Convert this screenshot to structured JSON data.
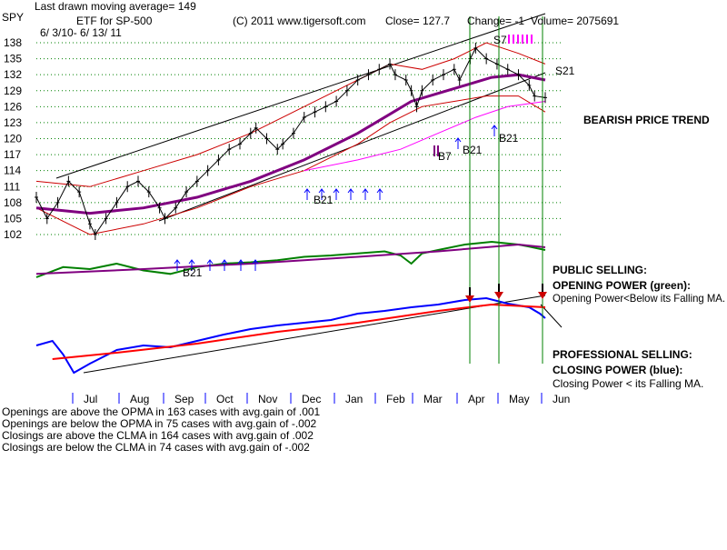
{
  "header": {
    "symbol": "SPY",
    "ma_line": "Last drawn moving average= 149",
    "etf_label": "ETF for SP-500",
    "date_range": "6/ 3/10- 6/ 13/ 11",
    "copyright": "(C) 2011 www.tigersoft.com",
    "close": "Close= 127.7",
    "change": "Change= -1",
    "volume": "Volume= 2075691"
  },
  "annotations": {
    "bearish": "BEARISH PRICE TREND",
    "public_selling": "PUBLIC SELLING:",
    "opening_power": "OPENING POWER (green):",
    "opening_power_desc": "Opening Power<Below its Falling MA.",
    "professional_selling": "PROFESSIONAL SELLING:",
    "closing_power": "CLOSING POWER (blue):",
    "closing_power_desc": "Closing Power < its Falling MA."
  },
  "signals": {
    "b21_a": "B21",
    "b21_b": "B21",
    "b21_c": "B21",
    "b21_d": "B21",
    "b7": "B7",
    "s7": "S7",
    "s21": "S21"
  },
  "stats": [
    "Openings are above the OPMA in  163 cases with avg.gain of  .001",
    "Openings are below the OPMA in  75 cases with avg.gain of -.002",
    "Closings are above the CLMA in  164 cases with avg.gain of  .002",
    "Closings are below the CLMA in  74 cases with avg.gain of -.002"
  ],
  "colors": {
    "price": "#000000",
    "bands": "#cc0000",
    "ma": "#800080",
    "ma_short": "#ff00ff",
    "opening_power": "#008000",
    "closing_power": "#0000ff",
    "closing_ma": "#ff0000",
    "signal": "#0000ff",
    "vline": "#008000",
    "grid": "#008000"
  },
  "chart_data": {
    "type": "line",
    "title": "",
    "xlabel": "",
    "ylabel": "",
    "ylim": [
      102,
      138
    ],
    "y_ticks": [
      138,
      135,
      132,
      129,
      126,
      123,
      120,
      117,
      114,
      111,
      108,
      105,
      102
    ],
    "months": [
      "Jul",
      "Aug",
      "Sep",
      "Oct",
      "Nov",
      "Dec",
      "Jan",
      "Feb",
      "Mar",
      "Apr",
      "May",
      "Jun"
    ],
    "grid": true,
    "price_path": [
      [
        0,
        109
      ],
      [
        2,
        105
      ],
      [
        4,
        108
      ],
      [
        6,
        112
      ],
      [
        8,
        110
      ],
      [
        10,
        104
      ],
      [
        11,
        102
      ],
      [
        13,
        105
      ],
      [
        15,
        108
      ],
      [
        17,
        111
      ],
      [
        19,
        112
      ],
      [
        21,
        110
      ],
      [
        23,
        107
      ],
      [
        24,
        105
      ],
      [
        26,
        107
      ],
      [
        28,
        110
      ],
      [
        30,
        112
      ],
      [
        32,
        114
      ],
      [
        34,
        116
      ],
      [
        36,
        118
      ],
      [
        38,
        119
      ],
      [
        40,
        121
      ],
      [
        41,
        122
      ],
      [
        43,
        120
      ],
      [
        45,
        118
      ],
      [
        46,
        119
      ],
      [
        48,
        121
      ],
      [
        50,
        124
      ],
      [
        52,
        125
      ],
      [
        54,
        126
      ],
      [
        56,
        127
      ],
      [
        58,
        129
      ],
      [
        60,
        131
      ],
      [
        62,
        132
      ],
      [
        64,
        133
      ],
      [
        66,
        134
      ],
      [
        67,
        132
      ],
      [
        69,
        131
      ],
      [
        70,
        129
      ],
      [
        71,
        126
      ],
      [
        72,
        129
      ],
      [
        74,
        131
      ],
      [
        76,
        132
      ],
      [
        78,
        133
      ],
      [
        79,
        131
      ],
      [
        81,
        135
      ],
      [
        82,
        137
      ],
      [
        84,
        135
      ],
      [
        86,
        134
      ],
      [
        88,
        133
      ],
      [
        90,
        132
      ],
      [
        92,
        130
      ],
      [
        93,
        128
      ],
      [
        95,
        127.7
      ]
    ],
    "ma_path": [
      [
        0,
        107
      ],
      [
        10,
        106
      ],
      [
        20,
        107
      ],
      [
        30,
        109
      ],
      [
        40,
        112
      ],
      [
        50,
        116
      ],
      [
        60,
        121
      ],
      [
        65,
        124
      ],
      [
        70,
        127
      ],
      [
        75,
        128.5
      ],
      [
        80,
        130
      ],
      [
        85,
        131.5
      ],
      [
        90,
        132
      ],
      [
        95,
        131
      ]
    ],
    "ma_short_path": [
      [
        50,
        114
      ],
      [
        60,
        116
      ],
      [
        68,
        118
      ],
      [
        75,
        121
      ],
      [
        82,
        124
      ],
      [
        88,
        126
      ],
      [
        95,
        127
      ]
    ],
    "upper_band": [
      [
        0,
        112
      ],
      [
        10,
        111
      ],
      [
        20,
        114
      ],
      [
        30,
        117
      ],
      [
        40,
        121
      ],
      [
        50,
        126
      ],
      [
        60,
        131
      ],
      [
        66,
        134
      ],
      [
        72,
        133
      ],
      [
        78,
        135
      ],
      [
        84,
        138
      ],
      [
        90,
        136
      ],
      [
        95,
        134
      ]
    ],
    "lower_band": [
      [
        0,
        107
      ],
      [
        10,
        102
      ],
      [
        20,
        104
      ],
      [
        30,
        107
      ],
      [
        40,
        111
      ],
      [
        50,
        114
      ],
      [
        60,
        119
      ],
      [
        66,
        123
      ],
      [
        72,
        126
      ],
      [
        78,
        127
      ],
      [
        84,
        128
      ],
      [
        90,
        128
      ],
      [
        95,
        125
      ]
    ],
    "opening_power_path": [
      [
        0,
        40
      ],
      [
        5,
        55
      ],
      [
        10,
        52
      ],
      [
        15,
        60
      ],
      [
        20,
        50
      ],
      [
        25,
        45
      ],
      [
        30,
        55
      ],
      [
        35,
        60
      ],
      [
        40,
        62
      ],
      [
        45,
        65
      ],
      [
        50,
        70
      ],
      [
        55,
        72
      ],
      [
        60,
        75
      ],
      [
        65,
        78
      ],
      [
        68,
        72
      ],
      [
        70,
        60
      ],
      [
        72,
        75
      ],
      [
        75,
        80
      ],
      [
        80,
        88
      ],
      [
        85,
        92
      ],
      [
        90,
        88
      ],
      [
        92,
        85
      ],
      [
        95,
        80
      ]
    ],
    "opening_ma_path": [
      [
        0,
        45
      ],
      [
        20,
        52
      ],
      [
        40,
        60
      ],
      [
        60,
        70
      ],
      [
        75,
        78
      ],
      [
        90,
        88
      ],
      [
        95,
        84
      ]
    ],
    "closing_power_path": [
      [
        0,
        40
      ],
      [
        3,
        45
      ],
      [
        5,
        30
      ],
      [
        7,
        10
      ],
      [
        10,
        20
      ],
      [
        15,
        35
      ],
      [
        20,
        40
      ],
      [
        25,
        38
      ],
      [
        30,
        45
      ],
      [
        35,
        52
      ],
      [
        40,
        58
      ],
      [
        45,
        62
      ],
      [
        50,
        65
      ],
      [
        55,
        68
      ],
      [
        60,
        75
      ],
      [
        65,
        78
      ],
      [
        70,
        82
      ],
      [
        75,
        85
      ],
      [
        80,
        90
      ],
      [
        84,
        92
      ],
      [
        88,
        86
      ],
      [
        92,
        82
      ],
      [
        94,
        75
      ],
      [
        95,
        70
      ]
    ],
    "closing_ma_path": [
      [
        3,
        25
      ],
      [
        15,
        32
      ],
      [
        30,
        42
      ],
      [
        45,
        55
      ],
      [
        60,
        65
      ],
      [
        75,
        78
      ],
      [
        85,
        85
      ],
      [
        95,
        82
      ]
    ]
  }
}
